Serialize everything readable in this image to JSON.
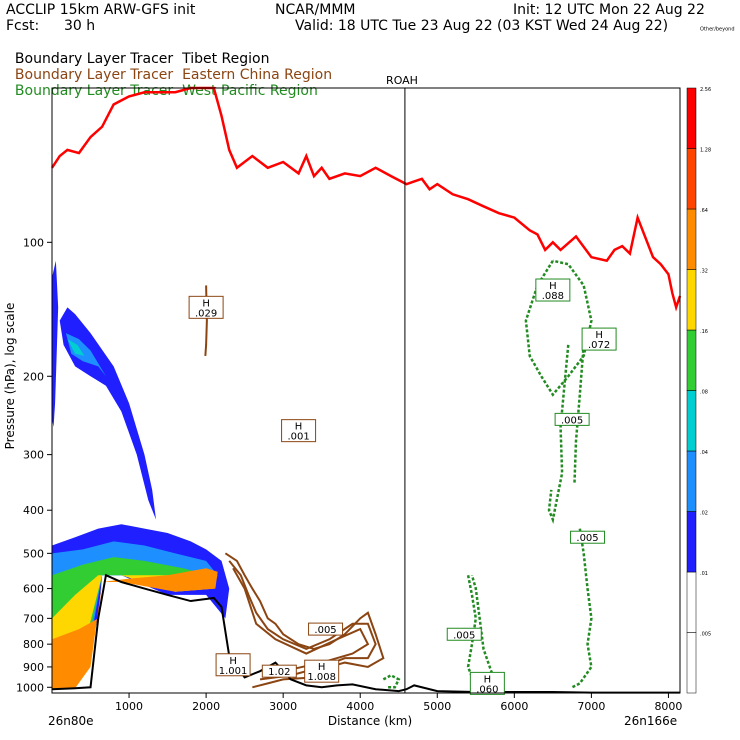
{
  "header": {
    "model": "ACCLIP 15km ARW-GFS init",
    "center": "NCAR/MMM",
    "init": "Init: 12 UTC Mon 22 Aug 22",
    "fcst_label": "Fcst:",
    "fcst_value": "30 h",
    "valid": "Valid: 18 UTC Tue 23 Aug 22 (03 KST Wed 24 Aug 22)"
  },
  "legend": [
    {
      "prefix": "Boundary Layer Tracer",
      "region": "Tibet Region",
      "color": "#000000"
    },
    {
      "prefix": "Boundary Layer Tracer",
      "region": "Eastern China Region",
      "color": "#8B4513"
    },
    {
      "prefix": "Boundary Layer Tracer",
      "region": "West Pacific Region",
      "color": "#228B22"
    }
  ],
  "chart_data": {
    "type": "contour-cross-section",
    "xlabel": "Distance (km)",
    "ylabel": "Pressure (hPa), log scale",
    "x_ticks": [
      "1000",
      "2000",
      "3000",
      "4000",
      "5000",
      "6000",
      "7000",
      "8000"
    ],
    "x_tick_values": [
      1000,
      2000,
      3000,
      4000,
      5000,
      6000,
      7000,
      8000
    ],
    "xlim": [
      0,
      8150
    ],
    "y_ticks": [
      "100",
      "200",
      "300",
      "400",
      "500",
      "600",
      "700",
      "800",
      "900",
      "1000"
    ],
    "y_tick_values": [
      100,
      200,
      300,
      400,
      500,
      600,
      700,
      800,
      900,
      1000
    ],
    "ylim": [
      45,
      1030
    ],
    "log_y": true,
    "x_start_label": "26n80e",
    "x_end_label": "26n166e",
    "marker": {
      "label": "ROAH",
      "x": 4580
    },
    "colorbar": {
      "colors": [
        "#ffffff",
        "#ffffff",
        "#1f1fff",
        "#1e8fff",
        "#00ced1",
        "#32cd32",
        "#ffd700",
        "#ff8c00",
        "#ff4500",
        "#ff0000"
      ],
      "labels": [
        ".005",
        ".01",
        ".02",
        ".04",
        ".08",
        ".16",
        ".32",
        ".64",
        "1.28",
        "2.56",
        "Other/beyond"
      ]
    },
    "tropopause_line": {
      "color": "#ff0000",
      "x": [
        0,
        100,
        200,
        350,
        500,
        650,
        800,
        1000,
        1200,
        1400,
        1600,
        1800,
        2000,
        2100,
        2200,
        2300,
        2400,
        2600,
        2800,
        3000,
        3200,
        3300,
        3400,
        3500,
        3600,
        3800,
        4000,
        4200,
        4400,
        4600,
        4700,
        4800,
        4900,
        5000,
        5200,
        5400,
        5600,
        5800,
        6000,
        6200,
        6300,
        6400,
        6500,
        6600,
        6800,
        7000,
        7200,
        7300,
        7400,
        7500,
        7600,
        7800,
        7900,
        8000,
        8050,
        8100,
        8150
      ],
      "p": [
        68,
        64,
        62,
        63,
        58,
        55,
        49,
        47,
        46,
        46,
        46,
        45,
        45,
        45,
        52,
        62,
        68,
        64,
        68,
        66,
        70,
        64,
        71,
        68,
        72,
        70,
        71,
        68,
        71,
        74,
        73,
        72,
        76,
        74,
        78,
        80,
        83,
        86,
        88,
        94,
        96,
        104,
        100,
        104,
        97,
        108,
        110,
        104,
        102,
        106,
        88,
        108,
        112,
        118,
        130,
        140,
        132
      ]
    },
    "surface_line": {
      "color": "#000000",
      "x": [
        0,
        300,
        500,
        600,
        700,
        900,
        1200,
        1500,
        1800,
        2100,
        2200,
        2300,
        2500,
        2700,
        2900,
        3100,
        3300,
        3500,
        3700,
        3900,
        4200,
        4500,
        4600,
        4700,
        5000,
        5500,
        6000,
        6500,
        7000,
        7500,
        8000,
        8150
      ],
      "p": [
        1010,
        1005,
        1000,
        700,
        560,
        580,
        600,
        620,
        640,
        630,
        660,
        850,
        950,
        920,
        880,
        960,
        990,
        1000,
        990,
        985,
        1010,
        1020,
        1010,
        990,
        1020,
        1025,
        1025,
        1025,
        1028,
        1028,
        1028,
        1028
      ]
    },
    "brown_h_labels": [
      {
        "x": 2000,
        "p": 140,
        "text": "H .029"
      },
      {
        "x": 3200,
        "p": 265,
        "text": "H .001"
      },
      {
        "x": 2350,
        "p": 890,
        "text": "H 1.001"
      },
      {
        "x": 2950,
        "p": 920,
        "text": "1.02"
      },
      {
        "x": 3500,
        "p": 920,
        "text": "H 1.008"
      },
      {
        "x": 3550,
        "p": 740,
        "text": ".005"
      }
    ],
    "green_h_labels": [
      {
        "x": 6500,
        "p": 128,
        "text": "H .088"
      },
      {
        "x": 7100,
        "p": 165,
        "text": "H .072"
      },
      {
        "x": 6750,
        "p": 250,
        "text": ".005"
      },
      {
        "x": 6950,
        "p": 460,
        "text": ".005"
      },
      {
        "x": 5350,
        "p": 760,
        "text": ".005"
      },
      {
        "x": 5650,
        "p": 980,
        "text": "H .060"
      }
    ]
  }
}
